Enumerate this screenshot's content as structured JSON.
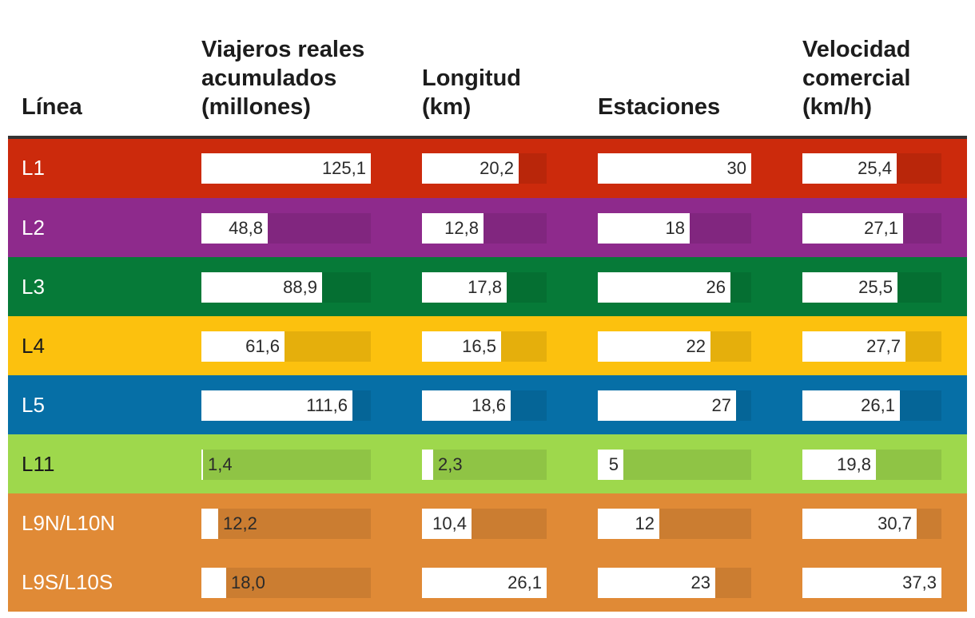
{
  "chart_data": {
    "type": "table",
    "columns": [
      {
        "key": "linea",
        "label": "Línea"
      },
      {
        "key": "viajeros",
        "label": "Viajeros reales\nacumulados\n(millones)",
        "max": 125.1
      },
      {
        "key": "longitud",
        "label": "Longitud\n(km)",
        "max": 26.1
      },
      {
        "key": "estaciones",
        "label": "Estaciones",
        "max": 30
      },
      {
        "key": "velocidad",
        "label": "Velocidad\ncomercial\n(km/h)",
        "max": 37.3
      }
    ],
    "rows": [
      {
        "linea": "L1",
        "color": "#cc2a0c",
        "text_color": "#ffffff",
        "viajeros": 125.1,
        "viajeros_label": "125,1",
        "longitud": 20.2,
        "longitud_label": "20,2",
        "estaciones": 30,
        "estaciones_label": "30",
        "velocidad": 25.4,
        "velocidad_label": "25,4"
      },
      {
        "linea": "L2",
        "color": "#8e2a8c",
        "text_color": "#ffffff",
        "viajeros": 48.8,
        "viajeros_label": "48,8",
        "longitud": 12.8,
        "longitud_label": "12,8",
        "estaciones": 18,
        "estaciones_label": "18",
        "velocidad": 27.1,
        "velocidad_label": "27,1"
      },
      {
        "linea": "L3",
        "color": "#067a38",
        "text_color": "#ffffff",
        "viajeros": 88.9,
        "viajeros_label": "88,9",
        "longitud": 17.8,
        "longitud_label": "17,8",
        "estaciones": 26,
        "estaciones_label": "26",
        "velocidad": 25.5,
        "velocidad_label": "25,5"
      },
      {
        "linea": "L4",
        "color": "#fcc10e",
        "text_color": "#1a1a1a",
        "viajeros": 61.6,
        "viajeros_label": "61,6",
        "longitud": 16.5,
        "longitud_label": "16,5",
        "estaciones": 22,
        "estaciones_label": "22",
        "velocidad": 27.7,
        "velocidad_label": "27,7"
      },
      {
        "linea": "L5",
        "color": "#066fa6",
        "text_color": "#ffffff",
        "viajeros": 111.6,
        "viajeros_label": "111,6",
        "longitud": 18.6,
        "longitud_label": "18,6",
        "estaciones": 27,
        "estaciones_label": "27",
        "velocidad": 26.1,
        "velocidad_label": "26,1"
      },
      {
        "linea": "L11",
        "color": "#9ed84c",
        "text_color": "#1a1a1a",
        "viajeros": 1.4,
        "viajeros_label": "1,4",
        "longitud": 2.3,
        "longitud_label": "2,3",
        "estaciones": 5,
        "estaciones_label": "5",
        "velocidad": 19.8,
        "velocidad_label": "19,8"
      },
      {
        "linea": "L9N/L10N",
        "color": "#e08a36",
        "text_color": "#ffffff",
        "viajeros": 12.2,
        "viajeros_label": "12,2",
        "longitud": 10.4,
        "longitud_label": "10,4",
        "estaciones": 12,
        "estaciones_label": "12",
        "velocidad": 30.7,
        "velocidad_label": "30,7"
      },
      {
        "linea": "L9S/L10S",
        "color": "#e08a36",
        "text_color": "#ffffff",
        "viajeros": 18.0,
        "viajeros_label": "18,0",
        "longitud": 26.1,
        "longitud_label": "26,1",
        "estaciones": 23,
        "estaciones_label": "23",
        "velocidad": 37.3,
        "velocidad_label": "37,3"
      }
    ]
  }
}
